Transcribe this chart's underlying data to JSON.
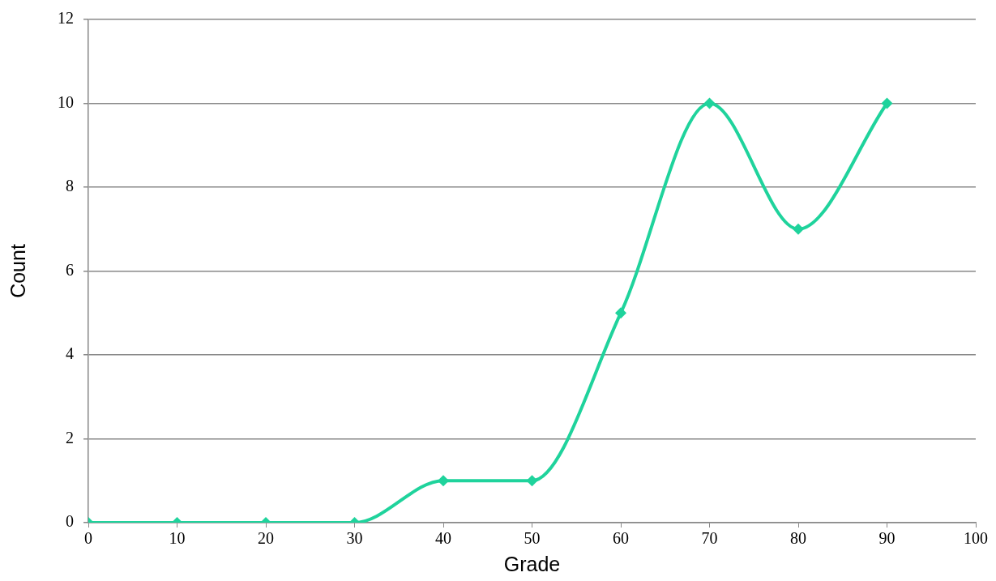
{
  "chart_data": {
    "type": "line",
    "xlabel": "Grade",
    "ylabel": "Count",
    "x": [
      0,
      10,
      20,
      30,
      40,
      50,
      60,
      70,
      80,
      90
    ],
    "series": [
      {
        "color": "#1fd39c",
        "values": [
          0,
          0,
          0,
          0,
          1,
          1,
          5,
          10,
          7,
          10
        ]
      }
    ],
    "xlim": [
      0,
      100
    ],
    "xticks": [
      0,
      10,
      20,
      30,
      40,
      50,
      60,
      70,
      80,
      90,
      100
    ],
    "ylim": [
      0,
      12
    ],
    "yticks": [
      0,
      2,
      4,
      6,
      8,
      10,
      12
    ],
    "grid": "y",
    "legend": false,
    "marker": "diamond",
    "line_style": "solid"
  }
}
